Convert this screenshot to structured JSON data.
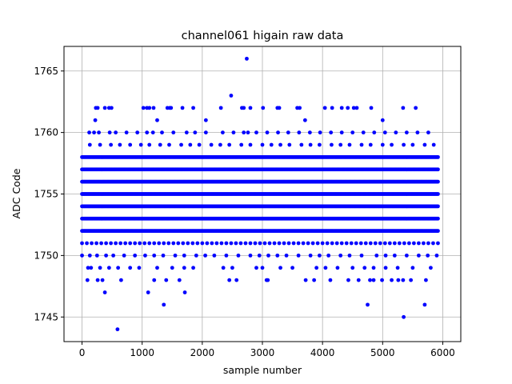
{
  "chart_data": {
    "type": "scatter",
    "title": "channel061 higain raw data",
    "xlabel": "sample number",
    "ylabel": "ADC Code",
    "xlim": [
      -300,
      6300
    ],
    "ylim": [
      1743,
      1767
    ],
    "xticks": [
      0,
      1000,
      2000,
      3000,
      4000,
      5000,
      6000
    ],
    "yticks": [
      1745,
      1750,
      1755,
      1760,
      1765
    ],
    "grid": true,
    "marker_color": "#0000ff",
    "n_samples": 5930,
    "x_step": 1,
    "density_note": "dense rows at 1754-1756, frequent 1751-1753 and 1757-1758, sparser toward extremes",
    "series": [
      {
        "name": "",
        "rows": [
          {
            "y": 1744,
            "x": [
              590
            ]
          },
          {
            "y": 1745,
            "x": [
              5350
            ]
          },
          {
            "y": 1746,
            "x": [
              1360,
              4750,
              5700
            ]
          },
          {
            "y": 1747,
            "x": [
              380,
              1100,
              1710
            ]
          },
          {
            "y": 1748,
            "x": [
              90,
              260,
              340,
              650,
              1200,
              1400,
              1620,
              2450,
              2570,
              3070,
              3090,
              3720,
              3860,
              4130,
              4430,
              4600,
              4790,
              4850,
              4990,
              5150,
              5260,
              5340,
              5470,
              5720
            ]
          },
          {
            "y": 1749,
            "x": [
              100,
              150,
              300,
              450,
              600,
              800,
              950,
              1250,
              1500,
              1700,
              1850,
              2350,
              2500,
              2900,
              3000,
              3300,
              3500,
              3900,
              4050,
              4250,
              4500,
              4700,
              4850,
              5050,
              5250,
              5500,
              5800
            ]
          },
          {
            "y": 1750,
            "x": [
              0,
              130,
              250,
              400,
              520,
              700,
              880,
              1050,
              1200,
              1350,
              1550,
              1700,
              1900,
              2050,
              2200,
              2400,
              2600,
              2800,
              2950,
              3100,
              3250,
              3400,
              3600,
              3800,
              3950,
              4100,
              4300,
              4450,
              4650,
              4900,
              5050,
              5200,
              5400,
              5600,
              5750,
              5900
            ]
          },
          {
            "y": 1751,
            "x": [
              0,
              80,
              160,
              240,
              320,
              400,
              480,
              560,
              640,
              720,
              800,
              880,
              960,
              1040,
              1120,
              1200,
              1280,
              1360,
              1440,
              1520,
              1600,
              1680,
              1760,
              1840,
              1920,
              2000,
              2080,
              2160,
              2240,
              2320,
              2400,
              2480,
              2560,
              2640,
              2720,
              2800,
              2880,
              2960,
              3040,
              3120,
              3200,
              3280,
              3360,
              3440,
              3520,
              3600,
              3680,
              3760,
              3840,
              3920,
              4000,
              4080,
              4160,
              4240,
              4320,
              4400,
              4480,
              4560,
              4640,
              4720,
              4800,
              4880,
              4960,
              5040,
              5120,
              5200,
              5280,
              5360,
              5440,
              5520,
              5600,
              5680,
              5760,
              5840,
              5920
            ]
          },
          {
            "y": 1752,
            "x": [
              0,
              5930
            ]
          },
          {
            "y": 1753,
            "x": [
              0,
              5930
            ]
          },
          {
            "y": 1754,
            "x": [
              0,
              5930
            ]
          },
          {
            "y": 1755,
            "x": [
              0,
              5930
            ]
          },
          {
            "y": 1756,
            "x": [
              0,
              5930
            ]
          },
          {
            "y": 1757,
            "x": [
              0,
              5930
            ]
          },
          {
            "y": 1758,
            "x": [
              0,
              5930
            ]
          },
          {
            "y": 1759,
            "x": [
              130,
              300,
              480,
              630,
              800,
              980,
              1120,
              1300,
              1450,
              1650,
              1800,
              1950,
              2150,
              2300,
              2450,
              2650,
              2800,
              3000,
              3150,
              3300,
              3450,
              3650,
              3800,
              3950,
              4150,
              4300,
              4450,
              4650,
              4800,
              5000,
              5150,
              5350,
              5500,
              5700,
              5850
            ]
          },
          {
            "y": 1760,
            "x": [
              120,
              200,
              280,
              460,
              560,
              740,
              920,
              1080,
              1180,
              1330,
              1520,
              1740,
              1880,
              2060,
              2340,
              2520,
              2690,
              2760,
              2900,
              3080,
              3260,
              3430,
              3610,
              3790,
              3960,
              4140,
              4320,
              4500,
              4680,
              4860,
              5040,
              5220,
              5400,
              5580,
              5760
            ]
          },
          {
            "y": 1761,
            "x": [
              220,
              1250,
              2060,
              3710,
              5000
            ]
          },
          {
            "y": 1762,
            "x": [
              230,
              260,
              380,
              450,
              490,
              1020,
              1080,
              1120,
              1190,
              1420,
              1460,
              1480,
              1670,
              1850,
              2310,
              2660,
              2690,
              2800,
              3010,
              3250,
              3280,
              3580,
              3620,
              4040,
              4160,
              4320,
              4420,
              4520,
              4570,
              4810,
              5340,
              5550
            ]
          },
          {
            "y": 1763,
            "x": [
              2480
            ]
          },
          {
            "y": 1766,
            "x": [
              2740
            ]
          }
        ]
      }
    ]
  }
}
